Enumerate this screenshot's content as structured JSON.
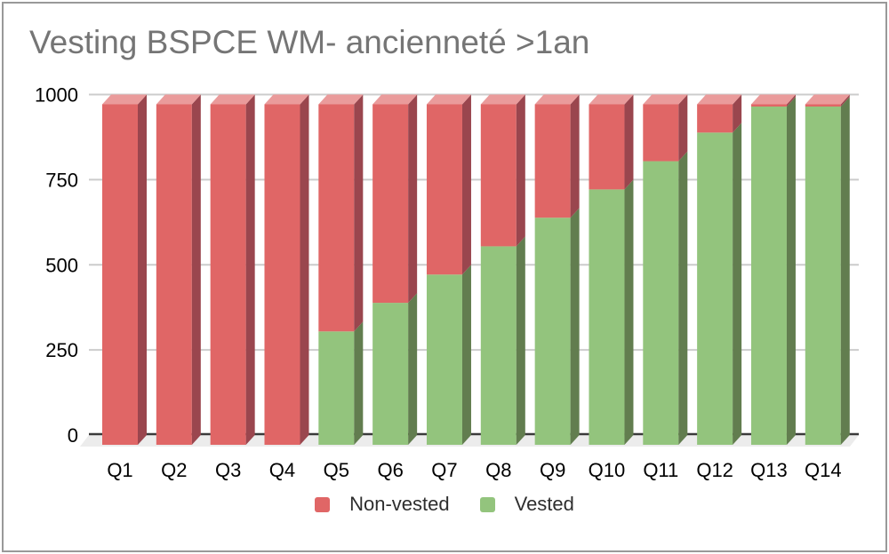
{
  "chart_data": {
    "type": "bar",
    "variant": "stacked-column-3d",
    "title": "Vesting BSPCE WM- ancienneté >1an",
    "title_color": "#757575",
    "categories": [
      "Q1",
      "Q2",
      "Q3",
      "Q4",
      "Q5",
      "Q6",
      "Q7",
      "Q8",
      "Q9",
      "Q10",
      "Q11",
      "Q12",
      "Q13",
      "Q14"
    ],
    "series": [
      {
        "name": "Non-vested",
        "color": "#e06666",
        "color_side": "#9a464e",
        "color_top": "#ea9b9b",
        "values": [
          1000,
          1000,
          1000,
          1000,
          667,
          583,
          500,
          417,
          333,
          250,
          167,
          83,
          0,
          0
        ]
      },
      {
        "name": "Vested",
        "color": "#93c47d",
        "color_side": "#627d4f",
        "color_top": "#b4d6a3",
        "values": [
          0,
          0,
          0,
          0,
          333,
          417,
          500,
          583,
          667,
          750,
          833,
          917,
          1000,
          1000
        ]
      }
    ],
    "stack_order_bottom_to_top": [
      "Vested",
      "Non-vested"
    ],
    "totals_per_category": 1000,
    "y_axis": {
      "min": 0,
      "max": 1000,
      "ticks": [
        0,
        250,
        500,
        750,
        1000
      ]
    },
    "grid": {
      "color": "#cccccc",
      "zero_line_color": "#3a3a3a",
      "floor_color": "#ececec"
    },
    "legend": {
      "position": "bottom",
      "entries": [
        {
          "label": "Non-vested",
          "color": "#e06666"
        },
        {
          "label": "Vested",
          "color": "#93c47d"
        }
      ]
    }
  }
}
